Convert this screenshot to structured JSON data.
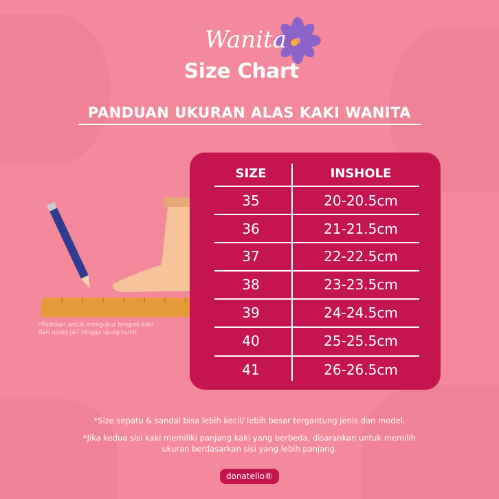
{
  "header": {
    "script_title": "Wanita",
    "title": "Size Chart",
    "subtitle": "PANDUAN UKURAN ALAS KAKI WANITA"
  },
  "table": {
    "columns": [
      "SIZE",
      "INSHOLE"
    ],
    "rows": [
      [
        "35",
        "20-20.5cm"
      ],
      [
        "36",
        "21-21.5cm"
      ],
      [
        "37",
        "22-22.5cm"
      ],
      [
        "38",
        "23-23.5cm"
      ],
      [
        "39",
        "24-24.5cm"
      ],
      [
        "40",
        "25-25.5cm"
      ],
      [
        "41",
        "26-26.5cm"
      ]
    ]
  },
  "illustration_note": [
    "*Pastikan untuk mengukur telapak kaki",
    "dari ujung jari hingga ujung tumit"
  ],
  "footnotes": {
    "note1": "*Size sepatu & sandal bisa lebih kecil/ lebih besar tergantung jenis dan model.",
    "note2_line1": "*Jika kedua sisi kaki memiliki panjang kaki yang berbeda, disarankan untuk memilih",
    "note2_line2": "ukuran berdasarkan sisi yang lebih panjang."
  },
  "brand": {
    "logo": "donatello®"
  },
  "colors": {
    "background": "#f3899b",
    "card": "#c5154e",
    "text": "#ffffff"
  }
}
